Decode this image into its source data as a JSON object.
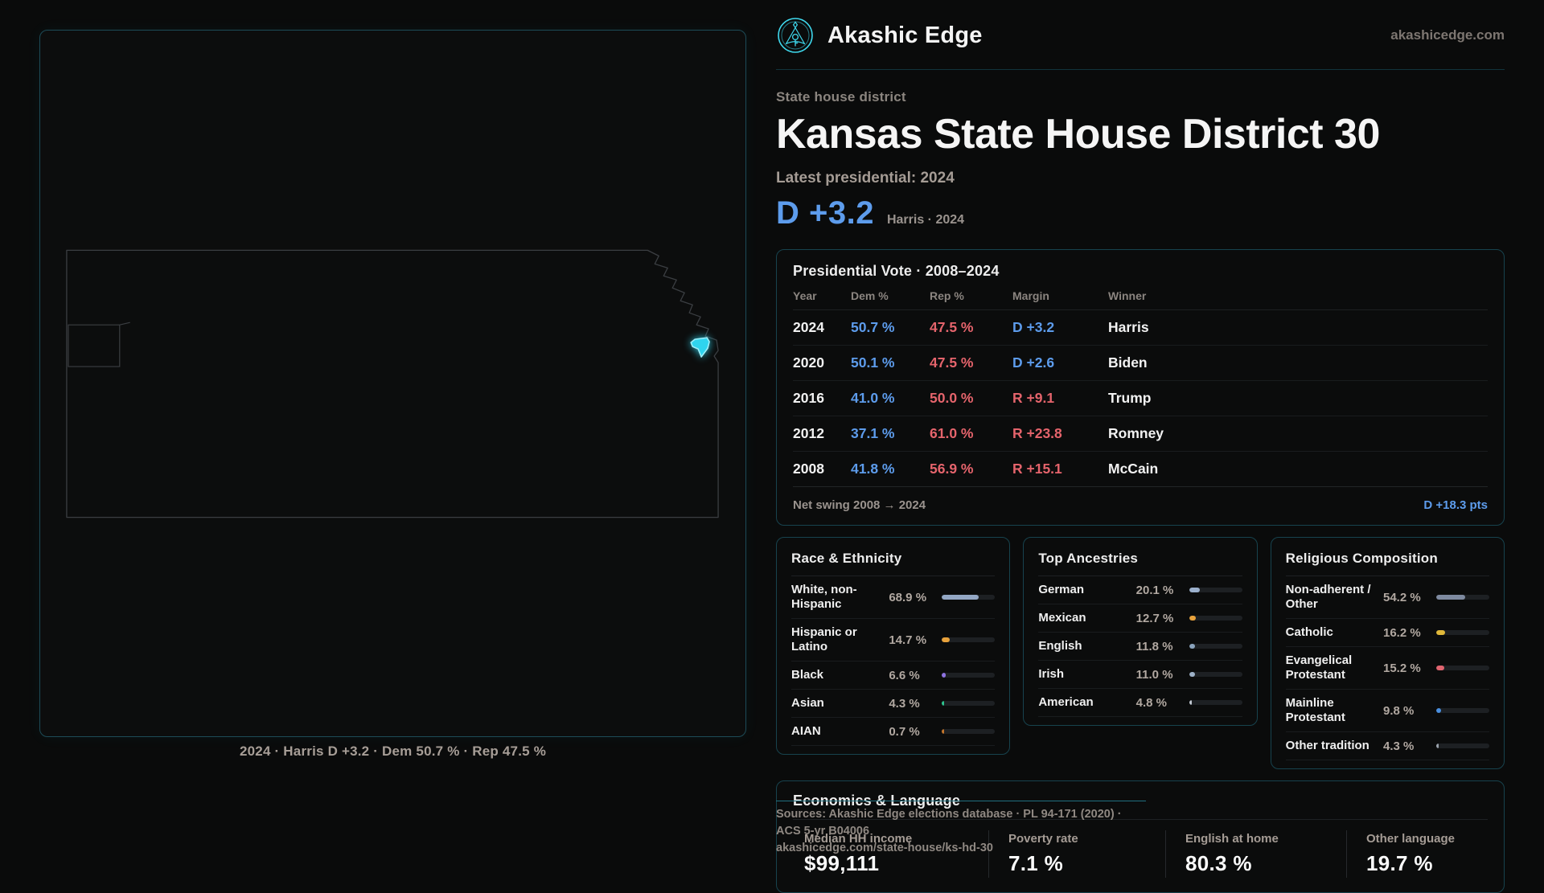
{
  "brand": {
    "name": "Akashic Edge",
    "domain": "akashicedge.com"
  },
  "page": {
    "kicker": "State house district",
    "title": "Kansas State House District 30",
    "latest_label": "Latest presidential: 2024",
    "margin_big": "D +3.2",
    "margin_context": "Harris · 2024"
  },
  "map": {
    "caption": "2024 · Harris D +3.2 · Dem 50.7 % · Rep 47.5 %"
  },
  "vote_table": {
    "title": "Presidential Vote · 2008–2024",
    "columns": [
      "Year",
      "Dem %",
      "Rep %",
      "Margin",
      "Winner"
    ],
    "rows": [
      {
        "year": "2024",
        "dem": "50.7 %",
        "rep": "47.5 %",
        "margin": "D +3.2",
        "winner": "Harris"
      },
      {
        "year": "2020",
        "dem": "50.1 %",
        "rep": "47.5 %",
        "margin": "D +2.6",
        "winner": "Biden"
      },
      {
        "year": "2016",
        "dem": "41.0 %",
        "rep": "50.0 %",
        "margin": "R +9.1",
        "winner": "Trump"
      },
      {
        "year": "2012",
        "dem": "37.1 %",
        "rep": "61.0 %",
        "margin": "R +23.8",
        "winner": "Romney"
      },
      {
        "year": "2008",
        "dem": "41.8 %",
        "rep": "56.9 %",
        "margin": "R +15.1",
        "winner": "McCain"
      }
    ],
    "net_swing_label": "Net swing 2008 → 2024",
    "net_swing_value": "D +18.3 pts"
  },
  "race": {
    "title": "Race & Ethnicity",
    "rows": [
      {
        "label": "White, non-Hispanic",
        "value": "68.9 %",
        "pct": 68.9,
        "color": "#93a7c4"
      },
      {
        "label": "Hispanic or Latino",
        "value": "14.7 %",
        "pct": 14.7,
        "color": "#e8a23c"
      },
      {
        "label": "Black",
        "value": "6.6 %",
        "pct": 6.6,
        "color": "#8d72e0"
      },
      {
        "label": "Asian",
        "value": "4.3 %",
        "pct": 4.3,
        "color": "#2ec48e"
      },
      {
        "label": "AIAN",
        "value": "0.7 %",
        "pct": 0.7,
        "color": "#c4762c"
      }
    ]
  },
  "ancestries": {
    "title": "Top Ancestries",
    "rows": [
      {
        "label": "German",
        "value": "20.1 %",
        "pct": 20.1,
        "color": "#9bb0cc"
      },
      {
        "label": "Mexican",
        "value": "12.7 %",
        "pct": 12.7,
        "color": "#e8a23c"
      },
      {
        "label": "English",
        "value": "11.8 %",
        "pct": 11.8,
        "color": "#8aa3bd"
      },
      {
        "label": "Irish",
        "value": "11.0 %",
        "pct": 11.0,
        "color": "#9db1c7"
      },
      {
        "label": "American",
        "value": "4.8 %",
        "pct": 4.8,
        "color": "#c2c9d2"
      }
    ]
  },
  "religion": {
    "title": "Religious Composition",
    "rows": [
      {
        "label": "Non-adherent / Other",
        "value": "54.2 %",
        "pct": 54.2,
        "color": "#7e8aa0"
      },
      {
        "label": "Catholic",
        "value": "16.2 %",
        "pct": 16.2,
        "color": "#e0b83a"
      },
      {
        "label": "Evangelical Protestant",
        "value": "15.2 %",
        "pct": 15.2,
        "color": "#e06570"
      },
      {
        "label": "Mainline Protestant",
        "value": "9.8 %",
        "pct": 9.8,
        "color": "#4a90e0"
      },
      {
        "label": "Other tradition",
        "value": "4.3 %",
        "pct": 4.3,
        "color": "#9aa2ac"
      }
    ]
  },
  "economics": {
    "title": "Economics & Language",
    "stats": [
      {
        "label": "Median HH income",
        "value": "$99,111"
      },
      {
        "label": "Poverty rate",
        "value": "7.1 %"
      },
      {
        "label": "English at home",
        "value": "80.3 %"
      },
      {
        "label": "Other language",
        "value": "19.7 %"
      }
    ]
  },
  "footer": {
    "line1": "Sources: Akashic Edge elections database · PL 94-171 (2020) · ACS 5-yr B04006",
    "line2": "akashicedge.com/state-house/ks-hd-30"
  }
}
